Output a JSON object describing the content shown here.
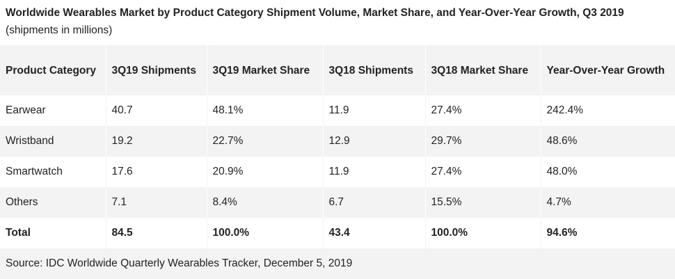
{
  "title": {
    "bold": "Worldwide Wearables Market by Product Category Shipment Volume, Market Share, and Year-Over-Year Growth, Q3 2019",
    "unit": "(shipments in millions)"
  },
  "table": {
    "headers": [
      "Product Category",
      "3Q19 Shipments",
      "3Q19 Market Share",
      "3Q18 Shipments",
      "3Q18 Market Share",
      "Year-Over-Year Growth"
    ],
    "rows": [
      [
        "Earwear",
        "40.7",
        "48.1%",
        "11.9",
        "27.4%",
        "242.4%"
      ],
      [
        "Wristband",
        "19.2",
        "22.7%",
        "12.9",
        "29.7%",
        "48.6%"
      ],
      [
        "Smartwatch",
        "17.6",
        "20.9%",
        "11.9",
        "27.4%",
        "48.0%"
      ],
      [
        "Others",
        "7.1",
        "8.4%",
        "6.7",
        "15.5%",
        "4.7%"
      ]
    ],
    "total": [
      "Total",
      "84.5",
      "100.0%",
      "43.4",
      "100.0%",
      "94.6%"
    ]
  },
  "source": "Source: IDC Worldwide Quarterly Wearables Tracker, December 5, 2019",
  "colors": {
    "stripe": "#f3f3f3",
    "text": "#222222"
  }
}
